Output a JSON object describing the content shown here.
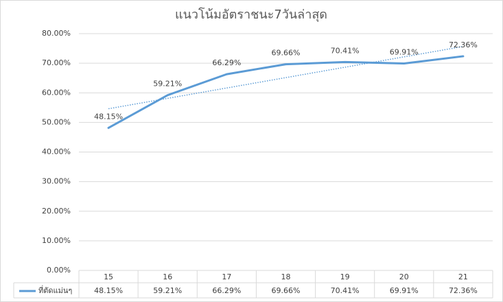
{
  "chart_data": {
    "type": "line",
    "title": "แนวโน้มอัตราชนะ7วันล่าสุด",
    "categories": [
      "15",
      "16",
      "17",
      "18",
      "19",
      "20",
      "21"
    ],
    "series": [
      {
        "name": "ที่ตัดแม่นๆ",
        "color": "#5b9bd5",
        "values": [
          48.15,
          59.21,
          66.29,
          69.66,
          70.41,
          69.91,
          72.36
        ],
        "value_labels": [
          "48.15%",
          "59.21%",
          "66.29%",
          "69.66%",
          "70.41%",
          "69.91%",
          "72.36%"
        ]
      }
    ],
    "ylim": [
      0,
      80
    ],
    "yticks": [
      {
        "value": 0,
        "label": "0.00%"
      },
      {
        "value": 10,
        "label": "10.00%"
      },
      {
        "value": 20,
        "label": "20.00%"
      },
      {
        "value": 30,
        "label": "30.00%"
      },
      {
        "value": 40,
        "label": "40.00%"
      },
      {
        "value": 50,
        "label": "50.00%"
      },
      {
        "value": 60,
        "label": "60.00%"
      },
      {
        "value": 70,
        "label": "70.00%"
      },
      {
        "value": 80,
        "label": "80.00%"
      }
    ],
    "grid": true,
    "trendline": "linear",
    "data_table": true
  }
}
